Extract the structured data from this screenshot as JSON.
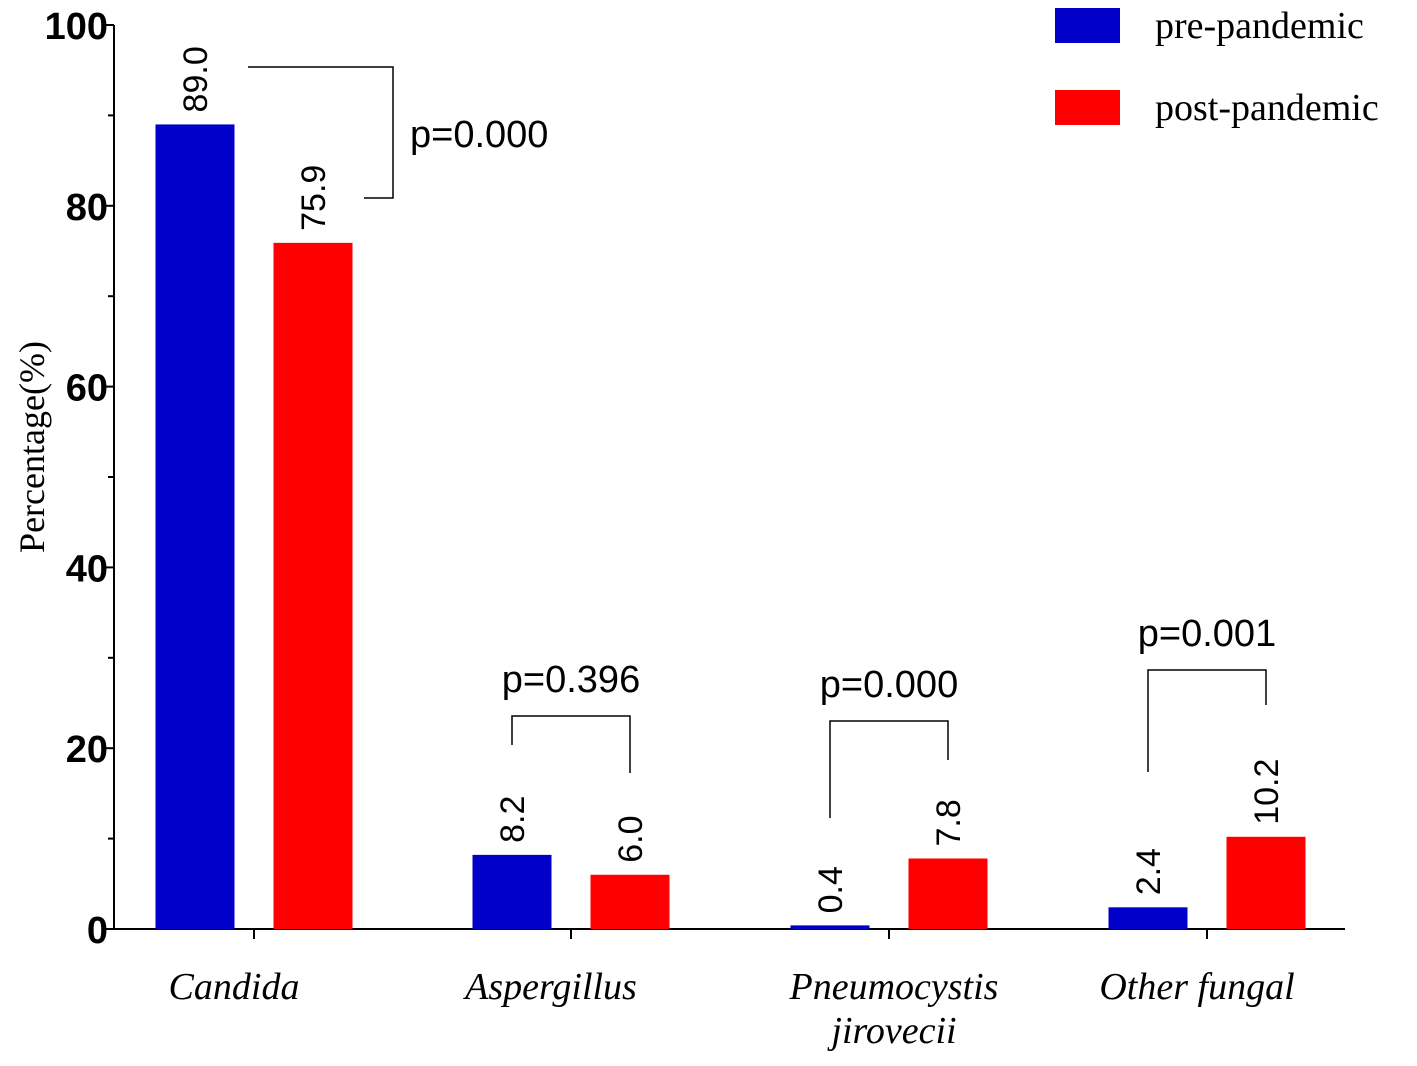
{
  "chart_data": {
    "type": "bar",
    "title": "",
    "xlabel": "",
    "ylabel": "Percentage(%)",
    "ylim": [
      0,
      100
    ],
    "yticks": [
      0,
      20,
      40,
      60,
      80,
      100
    ],
    "categories": [
      [
        "Candida"
      ],
      [
        "Aspergillus"
      ],
      [
        "Pneumocystis",
        "jirovecii"
      ],
      [
        "Other fungal"
      ]
    ],
    "series": [
      {
        "name": "pre-pandemic",
        "color": "#0000c8",
        "values": [
          89.0,
          8.2,
          0.4,
          2.4
        ],
        "labels": [
          "89.0",
          "8.2",
          "0.4",
          "2.4"
        ]
      },
      {
        "name": "post-pandemic",
        "color": "#ff0000",
        "values": [
          75.9,
          6.0,
          7.8,
          10.2
        ],
        "labels": [
          "75.9",
          "6.0",
          "7.8",
          "10.2"
        ]
      }
    ],
    "p_values": [
      "p=0.000",
      "p=0.396",
      "p=0.000",
      "p=0.001"
    ],
    "legend_position": "top-right",
    "grid": false
  }
}
